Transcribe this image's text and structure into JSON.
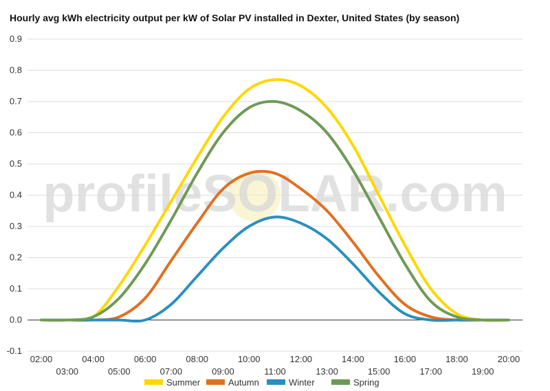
{
  "chart_data": {
    "type": "line",
    "title": "Hourly avg kWh electricity output per kW of Solar PV installed in Dexter, United States (by season)",
    "watermark": "profileSOLAR.com",
    "xlabel": "",
    "ylabel": "",
    "x": [
      "02:00",
      "03:00",
      "04:00",
      "05:00",
      "06:00",
      "07:00",
      "08:00",
      "09:00",
      "10:00",
      "11:00",
      "12:00",
      "13:00",
      "14:00",
      "15:00",
      "16:00",
      "17:00",
      "18:00",
      "19:00",
      "20:00"
    ],
    "ylim": [
      -0.1,
      0.9
    ],
    "yticks": [
      -0.1,
      0.0,
      0.1,
      0.2,
      0.3,
      0.4,
      0.5,
      0.6,
      0.7,
      0.8,
      0.9
    ],
    "grid": true,
    "legend_position": "bottom",
    "series": [
      {
        "name": "Summer",
        "color": "#FFD700",
        "values": [
          0.0,
          0.0,
          0.01,
          0.11,
          0.24,
          0.38,
          0.52,
          0.65,
          0.74,
          0.77,
          0.75,
          0.68,
          0.56,
          0.4,
          0.24,
          0.1,
          0.02,
          0.0,
          0.0
        ]
      },
      {
        "name": "Autumn",
        "color": "#E07020",
        "values": [
          0.0,
          0.0,
          0.0,
          0.01,
          0.07,
          0.19,
          0.31,
          0.42,
          0.47,
          0.47,
          0.42,
          0.35,
          0.25,
          0.14,
          0.05,
          0.01,
          0.0,
          0.0,
          0.0
        ]
      },
      {
        "name": "Winter",
        "color": "#2A8FC0",
        "values": [
          0.0,
          0.0,
          0.0,
          0.0,
          0.0,
          0.05,
          0.14,
          0.23,
          0.3,
          0.33,
          0.31,
          0.26,
          0.18,
          0.09,
          0.02,
          0.0,
          0.0,
          0.0,
          0.0
        ]
      },
      {
        "name": "Spring",
        "color": "#6E9A55",
        "values": [
          0.0,
          0.0,
          0.01,
          0.07,
          0.18,
          0.32,
          0.47,
          0.6,
          0.68,
          0.7,
          0.67,
          0.6,
          0.48,
          0.33,
          0.18,
          0.06,
          0.01,
          0.0,
          0.0
        ]
      }
    ]
  }
}
